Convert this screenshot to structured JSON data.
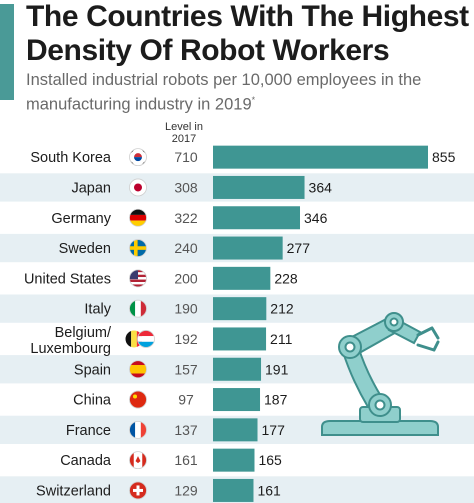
{
  "header": {
    "title": "The Countries With The Highest Density Of Robot Workers",
    "subtitle": "Installed industrial robots per 10,000 employees in the manufacturing industry in 2019",
    "subtitle_marker": "*",
    "level_header": "Level in 2017"
  },
  "colors": {
    "bar": "#3f9693",
    "accent": "#4a9a97",
    "row_band": "#e6eff3",
    "robot_arm": "#8fcfcc",
    "robot_outline": "#3f8f8c"
  },
  "chart_data": {
    "type": "bar",
    "orientation": "horizontal",
    "title": "The Countries With The Highest Density Of Robot Workers",
    "subtitle": "Installed industrial robots per 10,000 employees in the manufacturing industry in 2019",
    "categories": [
      "South Korea",
      "Japan",
      "Germany",
      "Sweden",
      "United States",
      "Italy",
      "Belgium/ Luxembourg",
      "Spain",
      "China",
      "France",
      "Canada",
      "Switzerland"
    ],
    "category_lines": [
      [
        "South Korea"
      ],
      [
        "Japan"
      ],
      [
        "Germany"
      ],
      [
        "Sweden"
      ],
      [
        "United States"
      ],
      [
        "Italy"
      ],
      [
        "Belgium/",
        "Luxembourg"
      ],
      [
        "Spain"
      ],
      [
        "China"
      ],
      [
        "France"
      ],
      [
        "Canada"
      ],
      [
        "Switzerland"
      ]
    ],
    "flags": [
      "south-korea-flag",
      "japan-flag",
      "germany-flag",
      "sweden-flag",
      "united-states-flag",
      "italy-flag",
      "belgium-luxembourg-flags",
      "spain-flag",
      "china-flag",
      "france-flag",
      "canada-flag",
      "switzerland-flag"
    ],
    "series": [
      {
        "name": "2019",
        "values": [
          855,
          364,
          346,
          277,
          228,
          212,
          211,
          191,
          187,
          177,
          165,
          161
        ]
      },
      {
        "name": "Level in 2017",
        "values": [
          710,
          308,
          322,
          240,
          200,
          190,
          192,
          157,
          97,
          137,
          161,
          129
        ]
      }
    ],
    "xlim": [
      0,
      855
    ],
    "grid": false,
    "legend": "none"
  }
}
